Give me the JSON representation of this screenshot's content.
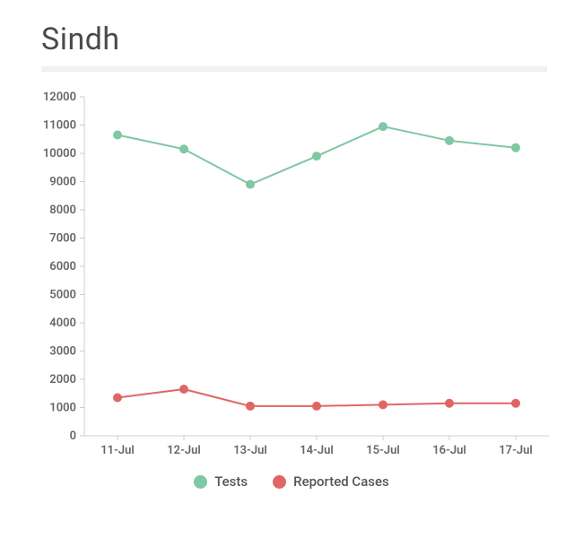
{
  "title": "Sindh",
  "chart": {
    "type": "line",
    "x_categories": [
      "11-Jul",
      "12-Jul",
      "13-Jul",
      "14-Jul",
      "15-Jul",
      "16-Jul",
      "17-Jul"
    ],
    "ylim": [
      0,
      12000
    ],
    "ytick_step": 1000,
    "yticks": [
      0,
      1000,
      2000,
      3000,
      4000,
      5000,
      6000,
      7000,
      8000,
      9000,
      10000,
      11000,
      12000
    ],
    "series": [
      {
        "name": "Tests",
        "color": "#80c7a3",
        "stroke_width": 2,
        "marker_radius": 5,
        "values": [
          10650,
          10150,
          8900,
          9900,
          10950,
          10450,
          10200
        ]
      },
      {
        "name": "Reported Cases",
        "color": "#e06666",
        "stroke_width": 2,
        "marker_radius": 5,
        "values": [
          1350,
          1650,
          1050,
          1050,
          1100,
          1150,
          1150
        ]
      }
    ],
    "axis_color": "#cccccc",
    "grid_on": false,
    "background_color": "#ffffff",
    "title_fontsize": 34,
    "title_color": "#4a4a4a",
    "tick_label_fontsize": 13,
    "tick_label_color": "#666666",
    "legend_fontsize": 15,
    "legend_color": "#555555"
  }
}
